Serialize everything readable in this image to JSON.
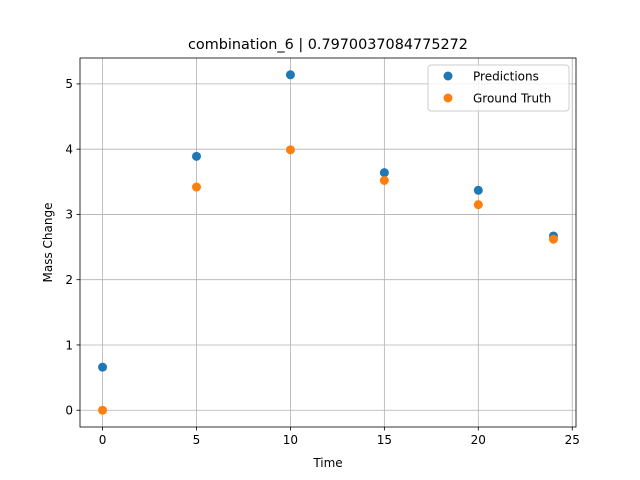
{
  "chart_data": {
    "type": "scatter",
    "title": "combination_6 | 0.7970037084775272",
    "xlabel": "Time",
    "ylabel": "Mass Change",
    "xlim": [
      -1.2,
      25.2
    ],
    "ylim": [
      -0.257,
      5.397
    ],
    "xticks": [
      0,
      5,
      10,
      15,
      20,
      25
    ],
    "yticks": [
      0,
      1,
      2,
      3,
      4,
      5
    ],
    "grid": true,
    "legend_position": "top-right",
    "series": [
      {
        "name": "Predictions",
        "color": "#1f77b4",
        "points": [
          {
            "x": 0,
            "y": 0.66
          },
          {
            "x": 5,
            "y": 3.89
          },
          {
            "x": 10,
            "y": 5.14
          },
          {
            "x": 15,
            "y": 3.64
          },
          {
            "x": 20,
            "y": 3.37
          },
          {
            "x": 24,
            "y": 2.67
          }
        ]
      },
      {
        "name": "Ground Truth",
        "color": "#ff7f0e",
        "points": [
          {
            "x": 0,
            "y": 0.0
          },
          {
            "x": 5,
            "y": 3.42
          },
          {
            "x": 10,
            "y": 3.99
          },
          {
            "x": 15,
            "y": 3.52
          },
          {
            "x": 20,
            "y": 3.15
          },
          {
            "x": 24,
            "y": 2.62
          }
        ]
      }
    ]
  }
}
